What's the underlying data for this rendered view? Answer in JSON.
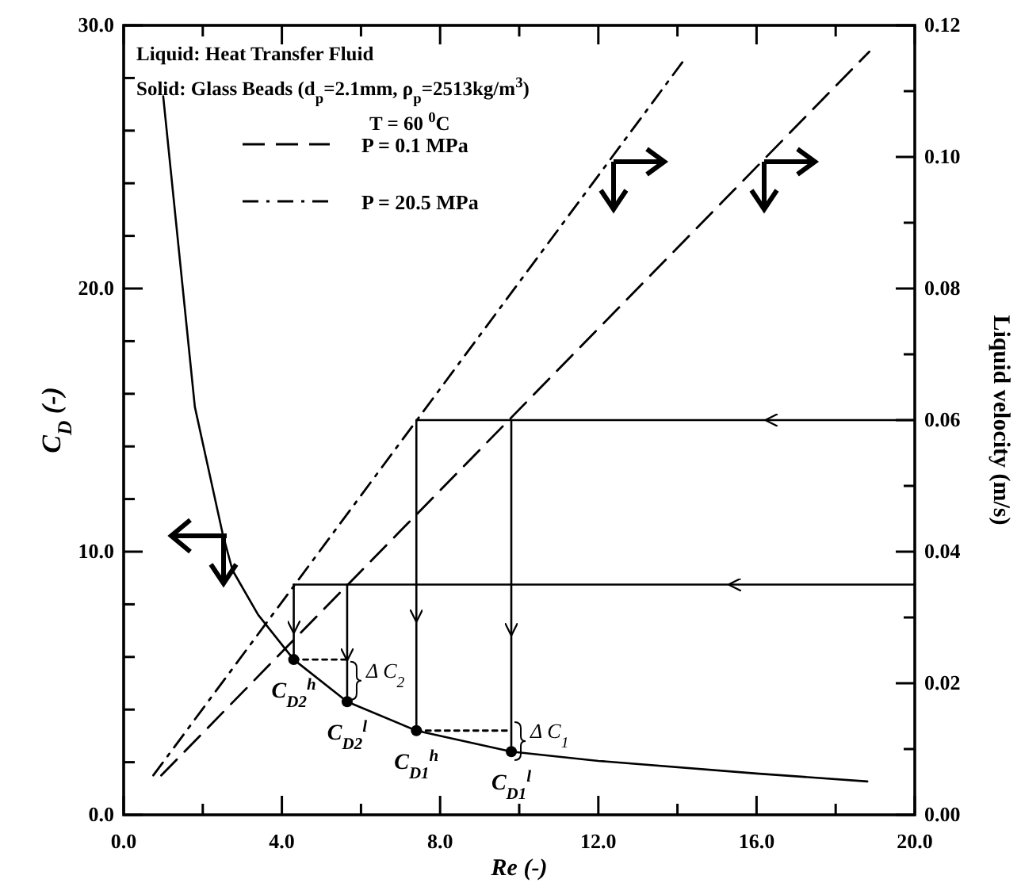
{
  "chart_data": {
    "type": "line",
    "xlabel": "Re (-)",
    "ylabel": "C$_{D}$ (-)",
    "y2label": "Liquid velocity (m/s)",
    "xlim": [
      0,
      20
    ],
    "xticks": [
      {
        "value": 0,
        "label": "0.0"
      },
      {
        "value": 2,
        "label": null
      },
      {
        "value": 4,
        "label": "4.0"
      },
      {
        "value": 6,
        "label": null
      },
      {
        "value": 8,
        "label": "8.0"
      },
      {
        "value": 10,
        "label": null
      },
      {
        "value": 12,
        "label": "12.0"
      },
      {
        "value": 14,
        "label": null
      },
      {
        "value": 16,
        "label": "16.0"
      },
      {
        "value": 18,
        "label": null
      },
      {
        "value": 20,
        "label": "20.0"
      }
    ],
    "ylim": [
      0,
      30
    ],
    "yticks": [
      {
        "value": 0,
        "label": "0.0"
      },
      {
        "value": 2,
        "label": null
      },
      {
        "value": 4,
        "label": null
      },
      {
        "value": 6,
        "label": null
      },
      {
        "value": 8,
        "label": null
      },
      {
        "value": 10,
        "label": "10.0"
      },
      {
        "value": 12,
        "label": null
      },
      {
        "value": 14,
        "label": null
      },
      {
        "value": 16,
        "label": null
      },
      {
        "value": 18,
        "label": null
      },
      {
        "value": 20,
        "label": "20.0"
      },
      {
        "value": 22,
        "label": null
      },
      {
        "value": 24,
        "label": null
      },
      {
        "value": 26,
        "label": null
      },
      {
        "value": 28,
        "label": null
      },
      {
        "value": 30,
        "label": "30.0"
      }
    ],
    "y2lim": [
      0,
      0.12
    ],
    "y2ticks": [
      {
        "value": 0,
        "label": "0.00"
      },
      {
        "value": 0.01,
        "label": null
      },
      {
        "value": 0.02,
        "label": "0.02"
      },
      {
        "value": 0.03,
        "label": null
      },
      {
        "value": 0.04,
        "label": "0.04"
      },
      {
        "value": 0.05,
        "label": null
      },
      {
        "value": 0.06,
        "label": "0.06"
      },
      {
        "value": 0.07,
        "label": null
      },
      {
        "value": 0.08,
        "label": "0.08"
      },
      {
        "value": 0.09,
        "label": null
      },
      {
        "value": 0.1,
        "label": "0.10"
      },
      {
        "value": 0.11,
        "label": null
      },
      {
        "value": 0.12,
        "label": "0.12"
      }
    ],
    "grid": false,
    "legend": "top left",
    "series": [
      {
        "type": "line",
        "color": "#000000",
        "line_style": "solid",
        "marker": "none",
        "x": [
          1.0,
          1.8,
          2.5,
          2.75,
          3.4,
          4.3,
          5.65,
          7.4,
          9.8,
          12,
          16,
          18.8
        ],
        "values": [
          27.3,
          15.5,
          10.7,
          9.3,
          7.6,
          5.9,
          4.3,
          3.2,
          2.4,
          2.05,
          1.57,
          1.27
        ]
      },
      {
        "type": "line",
        "name": "P = 0.1 MPa",
        "color": "#000000",
        "line_style": "dashed",
        "marker": "none",
        "axis": "y2",
        "x": [
          0.95,
          18.85
        ],
        "values": [
          0.006,
          0.116
        ]
      },
      {
        "type": "line",
        "name": "P = 20.5 MPa",
        "color": "#000000",
        "line_style": "dashdot",
        "marker": "none",
        "axis": "y2",
        "x": [
          0.75,
          14.2
        ],
        "values": [
          0.006,
          0.115
        ]
      },
      {
        "type": "line",
        "color": "#000000",
        "line_style": "solid",
        "marker": "none",
        "axis": "y2",
        "x": [
          20,
          7.4
        ],
        "values": [
          0.06,
          0.06
        ]
      },
      {
        "type": "line",
        "color": "#000000",
        "line_style": "solid",
        "marker": "none",
        "axis": "y2",
        "x": [
          20,
          4.3
        ],
        "values": [
          0.035,
          0.035
        ]
      },
      {
        "type": "line",
        "color": "#000000",
        "line_style": "solid",
        "marker": "none",
        "x": [
          7.4,
          7.4
        ],
        "values": [
          15,
          3.2
        ]
      },
      {
        "type": "line",
        "color": "#000000",
        "line_style": "solid",
        "marker": "none",
        "x": [
          9.8,
          9.8
        ],
        "values": [
          15,
          2.4
        ]
      },
      {
        "type": "line",
        "color": "#000000",
        "line_style": "solid",
        "marker": "none",
        "x": [
          4.3,
          4.3
        ],
        "values": [
          8.75,
          5.9
        ]
      },
      {
        "type": "line",
        "color": "#000000",
        "line_style": "solid",
        "marker": "none",
        "x": [
          5.65,
          5.65
        ],
        "values": [
          8.75,
          4.3
        ]
      },
      {
        "type": "line",
        "color": "#000000",
        "line_style": "dotted",
        "marker": "none",
        "x": [
          4.3,
          5.65
        ],
        "values": [
          5.9,
          5.9
        ]
      },
      {
        "type": "line",
        "color": "#000000",
        "line_style": "dotted",
        "marker": "none",
        "x": [
          7.4,
          9.8
        ],
        "values": [
          3.2,
          3.2
        ]
      },
      {
        "type": "scatter",
        "color": "#000000",
        "marker": "circle",
        "x": [
          4.3,
          5.65,
          7.4,
          9.8
        ],
        "values": [
          5.9,
          4.3,
          3.2,
          2.4
        ]
      }
    ],
    "annotations": [
      "Liquid: Heat Transfer Fluid",
      "Solid: Glass Beads (d$_{p}$=2.1mm, ρ$_{p}$=2513kg/m$^{3}$)",
      "T = 60 $^{0}$C",
      {
        "text": "C$_{D2}$$^{h}$",
        "x": 4.3,
        "y": 5.9
      },
      {
        "text": "C$_{D2}$$^{l}$",
        "x": 5.65,
        "y": 4.3
      },
      {
        "text": "C$_{D1}$$^{h}$",
        "x": 7.4,
        "y": 3.2
      },
      {
        "text": "C$_{D1}$$^{l}$",
        "x": 9.8,
        "y": 2.4
      },
      {
        "text": "Δ C$_{2}$",
        "x": 5.65,
        "y": 5.1
      },
      {
        "text": "Δ C$_{1}$",
        "x": 9.8,
        "y": 2.8
      }
    ]
  }
}
